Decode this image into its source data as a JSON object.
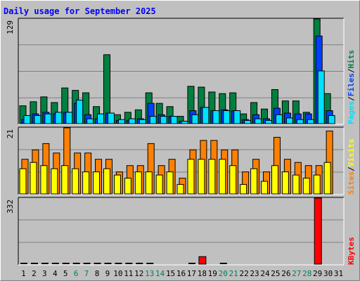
{
  "chart_data": {
    "type": "bar",
    "title": "Daily usage for September 2025",
    "x": [
      "1",
      "2",
      "3",
      "4",
      "5",
      "6",
      "7",
      "8",
      "9",
      "10",
      "11",
      "12",
      "13",
      "14",
      "15",
      "16",
      "17",
      "18",
      "19",
      "20",
      "21",
      "22",
      "23",
      "24",
      "25",
      "26",
      "27",
      "28",
      "29",
      "30",
      "31"
    ],
    "weekend_days": [
      "6",
      "7",
      "13",
      "14",
      "20",
      "21",
      "27",
      "28"
    ],
    "panels": [
      {
        "name": "hits-files-pages",
        "ymax_label": "129",
        "ymax": 129,
        "legend": [
          "Pages",
          "/",
          "Files",
          "/",
          "Hits"
        ],
        "legend_colors": [
          "#00e0ff",
          "#000000",
          "#0040ff",
          "#000000",
          "#008040"
        ],
        "series": [
          {
            "name": "Hits",
            "color": "#008040",
            "values": [
              22,
              27,
              33,
              26,
              44,
              41,
              38,
              21,
              85,
              11,
              14,
              17,
              38,
              25,
              21,
              9,
              46,
              45,
              39,
              37,
              38,
              12,
              26,
              18,
              42,
              28,
              28,
              14,
              129,
              37,
              0
            ]
          },
          {
            "name": "Files",
            "color": "#0040ff",
            "values": [
              5,
              12,
              14,
              12,
              14,
              25,
              11,
              6,
              13,
              4,
              4,
              6,
              25,
              11,
              9,
              3,
              16,
              20,
              16,
              17,
              16,
              5,
              11,
              6,
              19,
              13,
              12,
              12,
              108,
              16,
              0
            ]
          },
          {
            "name": "Pages",
            "color": "#00e0ff",
            "values": [
              10,
              10,
              12,
              14,
              14,
              29,
              6,
              12,
              13,
              5,
              6,
              5,
              9,
              9,
              9,
              3,
              11,
              20,
              16,
              16,
              16,
              4,
              6,
              4,
              11,
              7,
              5,
              5,
              65,
              10,
              0
            ]
          }
        ]
      },
      {
        "name": "visits-sites",
        "ymax_label": "21",
        "ymax": 21,
        "legend": [
          "Sites",
          "/",
          "Visits"
        ],
        "legend_colors": [
          "#ff8000",
          "#000000",
          "#ffff00"
        ],
        "series": [
          {
            "name": "Visits",
            "color": "#ff8000",
            "values": [
              11,
              14,
              16,
              13,
              21,
              13,
              13,
              11,
              11,
              7,
              9,
              9,
              16,
              9,
              11,
              5,
              14,
              17,
              17,
              14,
              14,
              7,
              11,
              7,
              18,
              11,
              10,
              9,
              9,
              20,
              0
            ]
          },
          {
            "name": "Sites",
            "color": "#ffff00",
            "values": [
              8,
              10,
              9,
              8,
              9,
              8,
              7,
              7,
              8,
              6,
              5,
              7,
              7,
              6,
              7,
              3,
              11,
              11,
              11,
              11,
              9,
              3,
              8,
              4,
              9,
              7,
              6,
              5,
              6,
              10,
              0
            ]
          }
        ]
      },
      {
        "name": "kbytes",
        "ymax_label": "332",
        "ymax": 332,
        "legend": [
          "KBytes"
        ],
        "legend_colors": [
          "#ff0000"
        ],
        "series": [
          {
            "name": "KBytes",
            "color": "#ff0000",
            "values": [
              0,
              0,
              0,
              0,
              0,
              0,
              0,
              0,
              0,
              0,
              0,
              0,
              0,
              0,
              0,
              0,
              0,
              38,
              0,
              0,
              0,
              0,
              0,
              0,
              0,
              0,
              0,
              0,
              332,
              0,
              0
            ]
          }
        ]
      }
    ]
  }
}
